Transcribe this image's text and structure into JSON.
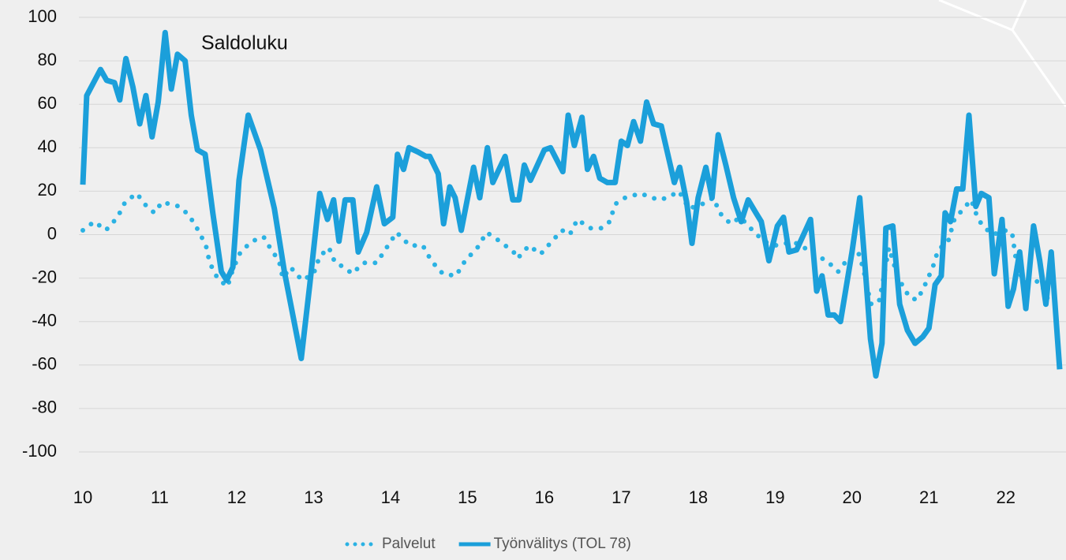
{
  "chart_data": {
    "type": "line",
    "annotation": "Saldoluku",
    "xlim": [
      10,
      22.7
    ],
    "xticks": [
      10,
      11,
      12,
      13,
      14,
      15,
      16,
      17,
      18,
      19,
      20,
      21,
      22
    ],
    "ylim": [
      -100,
      100
    ],
    "yticks": [
      100,
      80,
      60,
      40,
      20,
      0,
      -20,
      -40,
      -60,
      -80,
      -100
    ],
    "grid": true,
    "legend": "bottom",
    "series": [
      {
        "name": "Palvelut",
        "color": "#2bb2e3",
        "style": "dotted",
        "x": [
          10.0,
          10.15,
          10.3,
          10.45,
          10.55,
          10.7,
          10.83,
          10.93,
          11.03,
          11.25,
          11.38,
          11.5,
          11.6,
          11.65,
          11.75,
          11.88,
          11.95,
          12.05,
          12.2,
          12.35,
          12.45,
          12.55,
          12.6,
          12.7,
          12.85,
          13.0,
          13.08,
          13.2,
          13.28,
          13.4,
          13.5,
          13.65,
          13.82,
          13.95,
          14.08,
          14.25,
          14.42,
          14.53,
          14.68,
          14.85,
          14.97,
          15.13,
          15.25,
          15.42,
          15.6,
          15.65,
          15.8,
          15.95,
          16.1,
          16.23,
          16.33,
          16.43,
          16.55,
          16.6,
          16.75,
          16.85,
          16.92,
          17.05,
          17.25,
          17.48,
          17.6,
          17.75,
          17.88,
          18.05,
          18.2,
          18.28,
          18.42,
          18.55,
          18.68,
          18.85,
          19.0,
          19.12,
          19.3,
          19.5,
          19.67,
          19.82,
          19.97,
          20.08,
          20.15,
          20.2,
          20.25,
          20.35,
          20.4,
          20.48,
          20.6,
          20.75,
          20.85,
          20.95,
          21.05,
          21.12,
          21.25,
          21.33,
          21.45,
          21.55,
          21.63,
          21.7,
          21.83,
          21.98,
          22.08,
          22.15,
          22.25,
          22.35,
          22.45,
          22.55
        ],
        "values": [
          2,
          6,
          2,
          8,
          15,
          19,
          13,
          10,
          15,
          13,
          9,
          2,
          -5,
          -13,
          -20,
          -24,
          -16,
          -8,
          -3,
          -1,
          -7,
          -12,
          -20,
          -15,
          -21,
          -18,
          -10,
          -6,
          -13,
          -15,
          -18,
          -13,
          -13,
          -6,
          1,
          -5,
          -5,
          -12,
          -18,
          -19,
          -12,
          -6,
          1,
          -3,
          -8,
          -11,
          -5,
          -9,
          -3,
          2,
          0,
          7,
          4,
          3,
          3,
          6,
          14,
          17,
          19,
          16,
          17,
          20,
          12,
          14,
          17,
          10,
          5,
          8,
          3,
          -3,
          -5,
          -4,
          -4,
          -9,
          -12,
          -17,
          -10,
          -8,
          -16,
          -25,
          -32,
          -31,
          -22,
          -6,
          -20,
          -29,
          -30,
          -23,
          -15,
          -7,
          -3,
          7,
          12,
          16,
          8,
          4,
          0,
          2,
          1,
          -16,
          -22,
          -21,
          -22,
          -30
        ]
      },
      {
        "name": "Työnvälitys (TOL 78)",
        "color": "#1b9fda",
        "style": "solid",
        "x": [
          10.0,
          10.05,
          10.23,
          10.31,
          10.41,
          10.48,
          10.56,
          10.65,
          10.74,
          10.82,
          10.9,
          10.98,
          11.07,
          11.15,
          11.23,
          11.33,
          11.41,
          11.49,
          11.59,
          11.69,
          11.8,
          11.87,
          11.95,
          12.03,
          12.15,
          12.31,
          12.49,
          12.62,
          12.84,
          12.95,
          13.08,
          13.18,
          13.26,
          13.33,
          13.41,
          13.51,
          13.58,
          13.69,
          13.82,
          13.92,
          14.03,
          14.09,
          14.17,
          14.24,
          14.36,
          14.46,
          14.51,
          14.62,
          14.69,
          14.77,
          14.84,
          14.92,
          15.08,
          15.16,
          15.26,
          15.33,
          15.49,
          15.59,
          15.67,
          15.74,
          15.82,
          16.0,
          16.08,
          16.24,
          16.31,
          16.39,
          16.49,
          16.56,
          16.64,
          16.72,
          16.82,
          16.92,
          17.0,
          17.08,
          17.16,
          17.25,
          17.33,
          17.42,
          17.52,
          17.69,
          17.76,
          17.85,
          17.92,
          18.0,
          18.1,
          18.18,
          18.26,
          18.36,
          18.46,
          18.56,
          18.65,
          18.75,
          18.82,
          18.92,
          19.03,
          19.11,
          19.18,
          19.28,
          19.46,
          19.54,
          19.61,
          19.69,
          19.77,
          19.85,
          20.0,
          20.1,
          20.17,
          20.24,
          20.31,
          20.39,
          20.44,
          20.53,
          20.62,
          20.72,
          20.82,
          20.92,
          21.0,
          21.08,
          21.16,
          21.21,
          21.28,
          21.36,
          21.44,
          21.52,
          21.61,
          21.68,
          21.78,
          21.85,
          21.95,
          22.03,
          22.1,
          22.18,
          22.26,
          22.36,
          22.44,
          22.52,
          22.59,
          22.7
        ],
        "values": [
          23,
          64,
          76,
          71,
          70,
          62,
          81,
          68,
          51,
          64,
          45,
          61,
          93,
          67,
          83,
          80,
          55,
          39,
          37,
          10,
          -17,
          -21,
          -15,
          25,
          55,
          39,
          12,
          -17,
          -57,
          -23,
          19,
          7,
          16,
          -3,
          16,
          16,
          -8,
          1,
          22,
          5,
          8,
          37,
          30,
          40,
          38,
          36,
          36,
          28,
          5,
          22,
          17,
          2,
          31,
          17,
          40,
          24,
          36,
          16,
          16,
          32,
          25,
          39,
          40,
          29,
          55,
          41,
          54,
          30,
          36,
          26,
          24,
          24,
          43,
          41,
          52,
          43,
          61,
          51,
          50,
          24,
          31,
          15,
          -4,
          17,
          31,
          17,
          46,
          32,
          17,
          6,
          16,
          10,
          6,
          -12,
          4,
          8,
          -8,
          -7,
          7,
          -26,
          -19,
          -37,
          -37,
          -40,
          -8,
          17,
          -15,
          -48,
          -65,
          -50,
          3,
          4,
          -32,
          -44,
          -50,
          -47,
          -43,
          -23,
          -19,
          10,
          6,
          21,
          21,
          55,
          13,
          19,
          17,
          -18,
          7,
          -33,
          -25,
          -8,
          -34,
          4,
          -12,
          -32,
          -8,
          -62
        ]
      }
    ]
  }
}
